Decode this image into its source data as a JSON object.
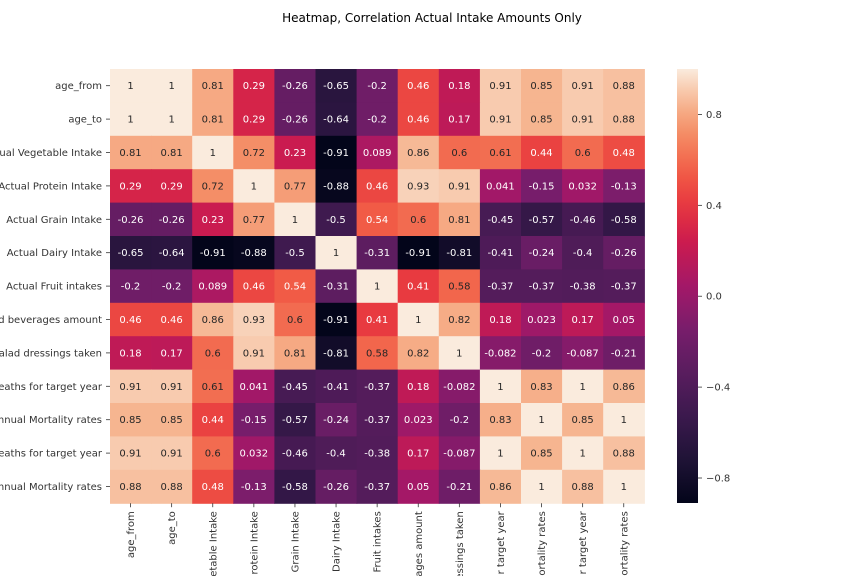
{
  "chart_data": {
    "type": "heatmap",
    "title": "Heatmap, Correlation Actual Intake Amounts Only",
    "row_labels": [
      "age_from",
      "age_to",
      "ual Vegetable Intake",
      "Actual Protein Intake",
      "Actual Grain Intake",
      "Actual Dairy Intake",
      "Actual Fruit intakes",
      "d beverages amount",
      "alad dressings taken",
      "eaths for target year",
      "nnual Mortality rates",
      "eaths for target year",
      "nnual Mortality rates"
    ],
    "col_labels": [
      "age_from",
      "age_to",
      "etable Intake",
      "rotein Intake",
      "Grain Intake",
      "Dairy Intake",
      "Fruit intakes",
      "ages amount",
      "essings taken",
      "r target year",
      "ortality rates",
      "r target year",
      "ortality rates"
    ],
    "values": [
      [
        1,
        1,
        0.81,
        0.29,
        -0.26,
        -0.65,
        -0.2,
        0.46,
        0.18,
        0.91,
        0.85,
        0.91,
        0.88
      ],
      [
        1,
        1,
        0.81,
        0.29,
        -0.26,
        -0.64,
        -0.2,
        0.46,
        0.17,
        0.91,
        0.85,
        0.91,
        0.88
      ],
      [
        0.81,
        0.81,
        1,
        0.72,
        0.23,
        -0.91,
        0.089,
        0.86,
        0.6,
        0.61,
        0.44,
        0.6,
        0.48
      ],
      [
        0.29,
        0.29,
        0.72,
        1,
        0.77,
        -0.88,
        0.46,
        0.93,
        0.91,
        0.041,
        -0.15,
        0.032,
        -0.13
      ],
      [
        -0.26,
        -0.26,
        0.23,
        0.77,
        1,
        -0.5,
        0.54,
        0.6,
        0.81,
        -0.45,
        -0.57,
        -0.46,
        -0.58
      ],
      [
        -0.65,
        -0.64,
        -0.91,
        -0.88,
        -0.5,
        1,
        -0.31,
        -0.91,
        -0.81,
        -0.41,
        -0.24,
        -0.4,
        -0.26
      ],
      [
        -0.2,
        -0.2,
        0.089,
        0.46,
        0.54,
        -0.31,
        1,
        0.41,
        0.58,
        -0.37,
        -0.37,
        -0.38,
        -0.37
      ],
      [
        0.46,
        0.46,
        0.86,
        0.93,
        0.6,
        -0.91,
        0.41,
        1,
        0.82,
        0.18,
        0.023,
        0.17,
        0.05
      ],
      [
        0.18,
        0.17,
        0.6,
        0.91,
        0.81,
        -0.81,
        0.58,
        0.82,
        1,
        -0.082,
        -0.2,
        -0.087,
        -0.21
      ],
      [
        0.91,
        0.91,
        0.61,
        0.041,
        -0.45,
        -0.41,
        -0.37,
        0.18,
        -0.082,
        1,
        0.83,
        1,
        0.86
      ],
      [
        0.85,
        0.85,
        0.44,
        -0.15,
        -0.57,
        -0.24,
        -0.37,
        0.023,
        -0.2,
        0.83,
        1,
        0.85,
        1
      ],
      [
        0.91,
        0.91,
        0.6,
        0.032,
        -0.46,
        -0.4,
        -0.38,
        0.17,
        -0.087,
        1,
        0.85,
        1,
        0.88
      ],
      [
        0.88,
        0.88,
        0.48,
        -0.13,
        -0.58,
        -0.26,
        -0.37,
        0.05,
        -0.21,
        0.86,
        1,
        0.88,
        1
      ]
    ],
    "labels": [
      [
        "1",
        "1",
        "0.81",
        "0.29",
        "-0.26",
        "-0.65",
        "-0.2",
        "0.46",
        "0.18",
        "0.91",
        "0.85",
        "0.91",
        "0.88"
      ],
      [
        "1",
        "1",
        "0.81",
        "0.29",
        "-0.26",
        "-0.64",
        "-0.2",
        "0.46",
        "0.17",
        "0.91",
        "0.85",
        "0.91",
        "0.88"
      ],
      [
        "0.81",
        "0.81",
        "1",
        "0.72",
        "0.23",
        "-0.91",
        "0.089",
        "0.86",
        "0.6",
        "0.61",
        "0.44",
        "0.6",
        "0.48"
      ],
      [
        "0.29",
        "0.29",
        "0.72",
        "1",
        "0.77",
        "-0.88",
        "0.46",
        "0.93",
        "0.91",
        "0.041",
        "-0.15",
        "0.032",
        "-0.13"
      ],
      [
        "-0.26",
        "-0.26",
        "0.23",
        "0.77",
        "1",
        "-0.5",
        "0.54",
        "0.6",
        "0.81",
        "-0.45",
        "-0.57",
        "-0.46",
        "-0.58"
      ],
      [
        "-0.65",
        "-0.64",
        "-0.91",
        "-0.88",
        "-0.5",
        "1",
        "-0.31",
        "-0.91",
        "-0.81",
        "-0.41",
        "-0.24",
        "-0.4",
        "-0.26"
      ],
      [
        "-0.2",
        "-0.2",
        "0.089",
        "0.46",
        "0.54",
        "-0.31",
        "1",
        "0.41",
        "0.58",
        "-0.37",
        "-0.37",
        "-0.38",
        "-0.37"
      ],
      [
        "0.46",
        "0.46",
        "0.86",
        "0.93",
        "0.6",
        "-0.91",
        "0.41",
        "1",
        "0.82",
        "0.18",
        "0.023",
        "0.17",
        "0.05"
      ],
      [
        "0.18",
        "0.17",
        "0.6",
        "0.91",
        "0.81",
        "-0.81",
        "0.58",
        "0.82",
        "1",
        "-0.082",
        "-0.2",
        "-0.087",
        "-0.21"
      ],
      [
        "0.91",
        "0.91",
        "0.61",
        "0.041",
        "-0.45",
        "-0.41",
        "-0.37",
        "0.18",
        "-0.082",
        "1",
        "0.83",
        "1",
        "0.86"
      ],
      [
        "0.85",
        "0.85",
        "0.44",
        "-0.15",
        "-0.57",
        "-0.24",
        "-0.37",
        "0.023",
        "-0.2",
        "0.83",
        "1",
        "0.85",
        "1"
      ],
      [
        "0.91",
        "0.91",
        "0.6",
        "0.032",
        "-0.46",
        "-0.4",
        "-0.38",
        "0.17",
        "-0.087",
        "1",
        "0.85",
        "1",
        "0.88"
      ],
      [
        "0.88",
        "0.88",
        "0.48",
        "-0.13",
        "-0.58",
        "-0.26",
        "-0.37",
        "0.05",
        "-0.21",
        "0.86",
        "1",
        "0.88",
        "1"
      ]
    ],
    "vmin": -0.91,
    "vmax": 1,
    "colormap": "rocket",
    "colorbar": {
      "ticks": [
        0.8,
        0.4,
        0.0,
        -0.4,
        -0.8
      ],
      "tick_labels": [
        "0.8",
        "0.4",
        "0.0",
        "−0.4",
        "−0.8"
      ],
      "placement": "right"
    },
    "grid": false
  }
}
